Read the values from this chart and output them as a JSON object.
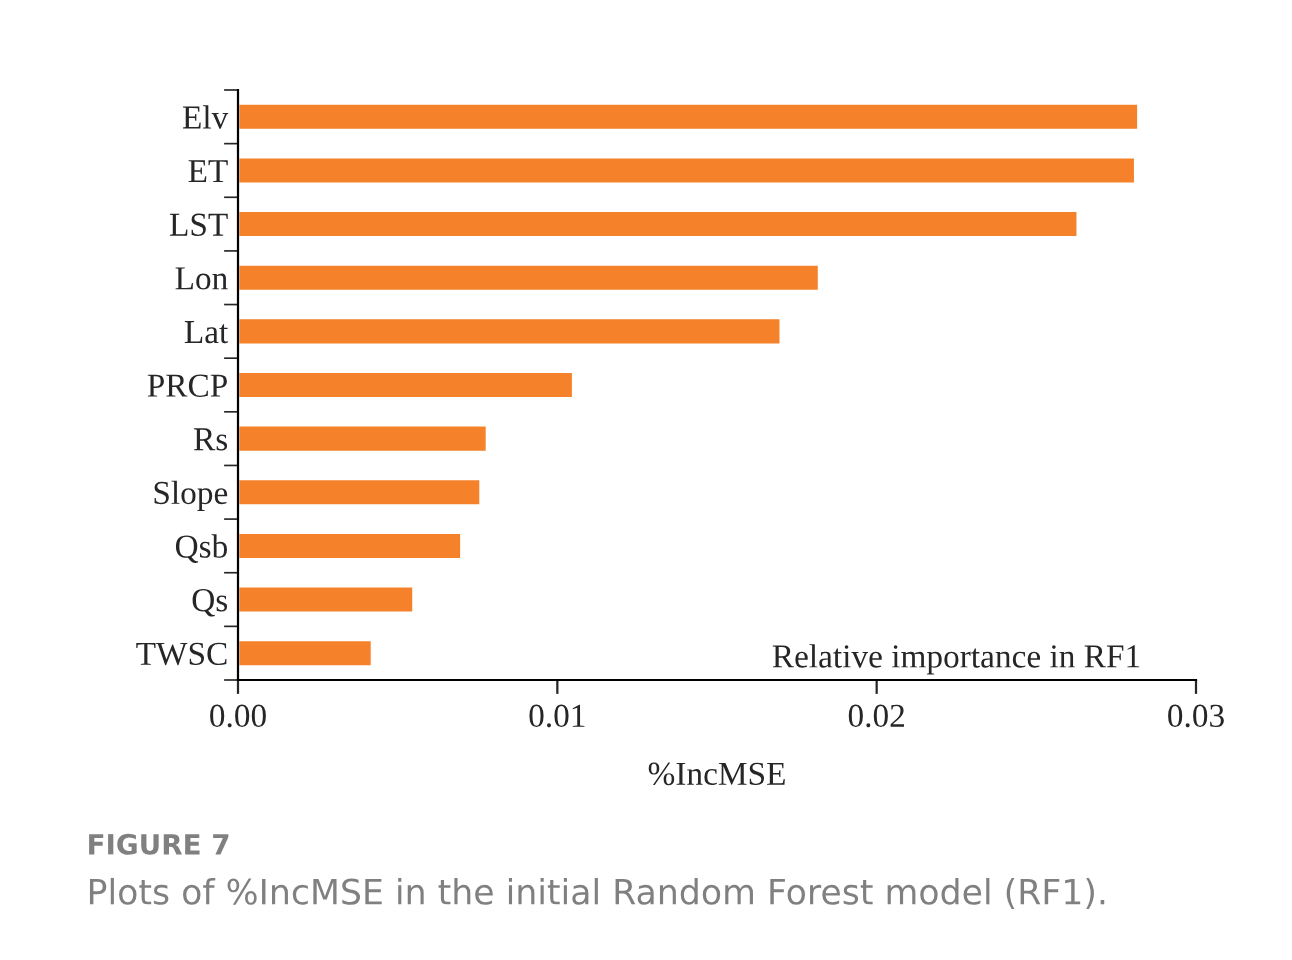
{
  "chart_data": {
    "type": "bar",
    "orientation": "horizontal",
    "categories": [
      "Elv",
      "ET",
      "LST",
      "Lon",
      "Lat",
      "PRCP",
      "Rs",
      "Slope",
      "Qsb",
      "Qs",
      "TWSC"
    ],
    "values": [
      0.0282,
      0.0281,
      0.0263,
      0.0182,
      0.017,
      0.0105,
      0.0078,
      0.0076,
      0.007,
      0.0055,
      0.0042
    ],
    "color": "#f5822a",
    "xlim": [
      0,
      0.03
    ],
    "xticks": [
      {
        "value": 0,
        "label": "0.00"
      },
      {
        "value": 0.01,
        "label": "0.01"
      },
      {
        "value": 0.02,
        "label": "0.02"
      },
      {
        "value": 0.03,
        "label": "0.03"
      }
    ],
    "xlabel": "%IncMSE",
    "grid": false,
    "annotations": [
      "Relative importance in RF1",
      "FIGURE 7",
      "Plots of %IncMSE in the initial Random Forest model (RF1)."
    ]
  }
}
